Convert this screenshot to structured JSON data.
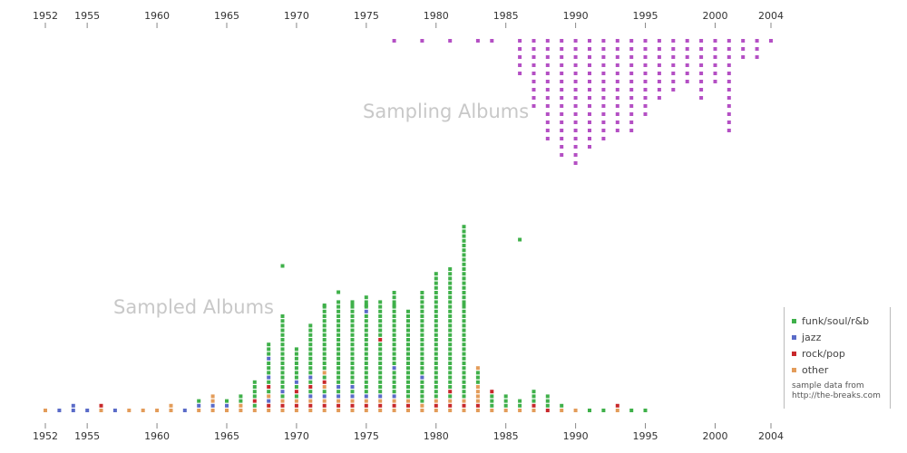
{
  "chart_data": {
    "type": "scatter",
    "x_ticks": [
      1952,
      1955,
      1960,
      1965,
      1970,
      1975,
      1980,
      1985,
      1990,
      1995,
      2000,
      2004
    ],
    "xlim": [
      1952,
      2004
    ],
    "sampling_label": "Sampling Albums",
    "sampled_label": "Sampled Albums",
    "colors": {
      "sampling": "#b44fc4",
      "funk/soul/r&b": "#3fb04a",
      "jazz": "#5a6bc8",
      "rock/pop": "#c8282b",
      "other": "#e39c5a"
    },
    "legend": {
      "items": [
        {
          "label": "funk/soul/r&b",
          "color": "#3fb04a"
        },
        {
          "label": "jazz",
          "color": "#5a6bc8"
        },
        {
          "label": "rock/pop",
          "color": "#c8282b"
        },
        {
          "label": "other",
          "color": "#e39c5a"
        }
      ],
      "note_line1": "sample data from",
      "note_line2": "http://the-breaks.com"
    },
    "sampling_counts": [
      [
        1977,
        1
      ],
      [
        1979,
        1
      ],
      [
        1981,
        1
      ],
      [
        1983,
        1
      ],
      [
        1984,
        1
      ],
      [
        1986,
        5
      ],
      [
        1987,
        9
      ],
      [
        1988,
        13
      ],
      [
        1989,
        15
      ],
      [
        1990,
        16
      ],
      [
        1991,
        14
      ],
      [
        1992,
        13
      ],
      [
        1993,
        12
      ],
      [
        1994,
        12
      ],
      [
        1995,
        10
      ],
      [
        1996,
        8
      ],
      [
        1997,
        7
      ],
      [
        1998,
        6
      ],
      [
        1999,
        8
      ],
      [
        2000,
        6
      ],
      [
        2001,
        12
      ],
      [
        2002,
        3
      ],
      [
        2003,
        3
      ],
      [
        2004,
        1
      ]
    ],
    "sampled_stacks": [
      [
        1952,
        [
          "other"
        ]
      ],
      [
        1953,
        [
          "jazz"
        ]
      ],
      [
        1954,
        [
          "jazz",
          "jazz"
        ]
      ],
      [
        1955,
        [
          "jazz"
        ]
      ],
      [
        1956,
        [
          "other",
          "rock/pop"
        ]
      ],
      [
        1957,
        [
          "jazz"
        ]
      ],
      [
        1958,
        [
          "other"
        ]
      ],
      [
        1959,
        [
          "other"
        ]
      ],
      [
        1960,
        [
          "other"
        ]
      ],
      [
        1961,
        [
          "other",
          "other"
        ]
      ],
      [
        1962,
        [
          "jazz"
        ]
      ],
      [
        1963,
        [
          "other",
          "jazz",
          "funk/soul/r&b"
        ]
      ],
      [
        1964,
        [
          "other",
          "jazz",
          "other",
          "other"
        ]
      ],
      [
        1965,
        [
          "other",
          "jazz",
          "funk/soul/r&b"
        ]
      ],
      [
        1966,
        [
          "other",
          "other",
          "funk/soul/r&b",
          "funk/soul/r&b"
        ]
      ],
      [
        1967,
        [
          "other",
          "funk/soul/r&b",
          "rock/pop",
          "funk/soul/r&b",
          "funk/soul/r&b",
          "funk/soul/r&b",
          "funk/soul/r&b"
        ]
      ],
      [
        1968,
        [
          "other",
          "rock/pop",
          "jazz",
          "other",
          "funk/soul/r&b",
          "rock/pop",
          "funk/soul/r&b",
          "jazz",
          "funk/soul/r&b",
          "funk/soul/r&b",
          "funk/soul/r&b",
          "jazz",
          "funk/soul/r&b",
          "funk/soul/r&b",
          "funk/soul/r&b"
        ]
      ],
      [
        1969,
        [
          "other",
          "rock/pop",
          "other",
          "funk/soul/r&b",
          "jazz",
          "funk/soul/r&b",
          "funk/soul/r&b",
          "funk/soul/r&b",
          "funk/soul/r&b",
          "funk/soul/r&b",
          "funk/soul/r&b",
          "funk/soul/r&b",
          "funk/soul/r&b",
          "funk/soul/r&b",
          "funk/soul/r&b",
          "funk/soul/r&b",
          "funk/soul/r&b",
          "funk/soul/r&b",
          "funk/soul/r&b",
          "funk/soul/r&b",
          "funk/soul/r&b"
        ]
      ],
      [
        1970,
        [
          "other",
          "rock/pop",
          "other",
          "funk/soul/r&b",
          "rock/pop",
          "funk/soul/r&b",
          "jazz",
          "funk/soul/r&b",
          "funk/soul/r&b",
          "funk/soul/r&b",
          "funk/soul/r&b",
          "funk/soul/r&b",
          "funk/soul/r&b",
          "funk/soul/r&b"
        ]
      ],
      [
        1971,
        [
          "other",
          "rock/pop",
          "other",
          "jazz",
          "funk/soul/r&b",
          "rock/pop",
          "funk/soul/r&b",
          "jazz",
          "funk/soul/r&b",
          "funk/soul/r&b",
          "funk/soul/r&b",
          "funk/soul/r&b",
          "funk/soul/r&b",
          "funk/soul/r&b",
          "funk/soul/r&b",
          "funk/soul/r&b",
          "funk/soul/r&b",
          "funk/soul/r&b",
          "funk/soul/r&b"
        ]
      ],
      [
        1972,
        [
          "other",
          "rock/pop",
          "other",
          "jazz",
          "funk/soul/r&b",
          "other",
          "rock/pop",
          "funk/soul/r&b",
          "other",
          "funk/soul/r&b",
          "funk/soul/r&b",
          "funk/soul/r&b",
          "funk/soul/r&b",
          "funk/soul/r&b",
          "funk/soul/r&b",
          "funk/soul/r&b",
          "funk/soul/r&b",
          "funk/soul/r&b",
          "funk/soul/r&b",
          "funk/soul/r&b",
          "funk/soul/r&b",
          "funk/soul/r&b",
          "funk/soul/r&b"
        ]
      ],
      [
        1973,
        [
          "other",
          "rock/pop",
          "other",
          "jazz",
          "funk/soul/r&b",
          "jazz",
          "funk/soul/r&b",
          "funk/soul/r&b",
          "funk/soul/r&b",
          "funk/soul/r&b",
          "funk/soul/r&b",
          "funk/soul/r&b",
          "funk/soul/r&b",
          "funk/soul/r&b",
          "funk/soul/r&b",
          "funk/soul/r&b",
          "funk/soul/r&b",
          "funk/soul/r&b",
          "funk/soul/r&b",
          "funk/soul/r&b",
          "funk/soul/r&b",
          "funk/soul/r&b",
          "funk/soul/r&b",
          "funk/soul/r&b"
        ]
      ],
      [
        1974,
        [
          "other",
          "rock/pop",
          "other",
          "jazz",
          "funk/soul/r&b",
          "jazz",
          "funk/soul/r&b",
          "funk/soul/r&b",
          "funk/soul/r&b",
          "funk/soul/r&b",
          "funk/soul/r&b",
          "funk/soul/r&b",
          "funk/soul/r&b",
          "funk/soul/r&b",
          "funk/soul/r&b",
          "funk/soul/r&b",
          "funk/soul/r&b",
          "funk/soul/r&b",
          "funk/soul/r&b",
          "funk/soul/r&b",
          "funk/soul/r&b",
          "funk/soul/r&b",
          "funk/soul/r&b",
          "funk/soul/r&b"
        ]
      ],
      [
        1975,
        [
          "other",
          "rock/pop",
          "other",
          "jazz",
          "funk/soul/r&b",
          "funk/soul/r&b",
          "funk/soul/r&b",
          "funk/soul/r&b",
          "funk/soul/r&b",
          "funk/soul/r&b",
          "funk/soul/r&b",
          "funk/soul/r&b",
          "funk/soul/r&b",
          "funk/soul/r&b",
          "funk/soul/r&b",
          "funk/soul/r&b",
          "funk/soul/r&b",
          "funk/soul/r&b",
          "funk/soul/r&b",
          "funk/soul/r&b",
          "funk/soul/r&b",
          "jazz",
          "funk/soul/r&b",
          "funk/soul/r&b",
          "funk/soul/r&b"
        ]
      ],
      [
        1976,
        [
          "other",
          "rock/pop",
          "other",
          "jazz",
          "funk/soul/r&b",
          "funk/soul/r&b",
          "funk/soul/r&b",
          "funk/soul/r&b",
          "funk/soul/r&b",
          "funk/soul/r&b",
          "funk/soul/r&b",
          "funk/soul/r&b",
          "funk/soul/r&b",
          "funk/soul/r&b",
          "funk/soul/r&b",
          "rock/pop",
          "funk/soul/r&b",
          "funk/soul/r&b",
          "funk/soul/r&b",
          "funk/soul/r&b",
          "funk/soul/r&b",
          "funk/soul/r&b",
          "funk/soul/r&b",
          "funk/soul/r&b"
        ]
      ],
      [
        1977,
        [
          "other",
          "rock/pop",
          "other",
          "jazz",
          "funk/soul/r&b",
          "funk/soul/r&b",
          "funk/soul/r&b",
          "funk/soul/r&b",
          "funk/soul/r&b",
          "jazz",
          "funk/soul/r&b",
          "funk/soul/r&b",
          "funk/soul/r&b",
          "funk/soul/r&b",
          "funk/soul/r&b",
          "funk/soul/r&b",
          "funk/soul/r&b",
          "funk/soul/r&b",
          "funk/soul/r&b",
          "funk/soul/r&b",
          "funk/soul/r&b",
          "funk/soul/r&b",
          "funk/soul/r&b",
          "funk/soul/r&b",
          "funk/soul/r&b",
          "funk/soul/r&b"
        ]
      ],
      [
        1978,
        [
          "other",
          "rock/pop",
          "other",
          "funk/soul/r&b",
          "funk/soul/r&b",
          "funk/soul/r&b",
          "funk/soul/r&b",
          "funk/soul/r&b",
          "funk/soul/r&b",
          "funk/soul/r&b",
          "funk/soul/r&b",
          "funk/soul/r&b",
          "funk/soul/r&b",
          "funk/soul/r&b",
          "funk/soul/r&b",
          "funk/soul/r&b",
          "funk/soul/r&b",
          "funk/soul/r&b",
          "funk/soul/r&b",
          "funk/soul/r&b",
          "funk/soul/r&b",
          "funk/soul/r&b"
        ]
      ],
      [
        1979,
        [
          "other",
          "other",
          "funk/soul/r&b",
          "funk/soul/r&b",
          "funk/soul/r&b",
          "funk/soul/r&b",
          "funk/soul/r&b",
          "jazz",
          "funk/soul/r&b",
          "funk/soul/r&b",
          "funk/soul/r&b",
          "funk/soul/r&b",
          "funk/soul/r&b",
          "funk/soul/r&b",
          "funk/soul/r&b",
          "funk/soul/r&b",
          "funk/soul/r&b",
          "funk/soul/r&b",
          "funk/soul/r&b",
          "funk/soul/r&b",
          "funk/soul/r&b",
          "funk/soul/r&b",
          "funk/soul/r&b",
          "funk/soul/r&b",
          "funk/soul/r&b",
          "funk/soul/r&b"
        ]
      ],
      [
        1980,
        [
          "other",
          "rock/pop",
          "other",
          "funk/soul/r&b",
          "funk/soul/r&b",
          "funk/soul/r&b",
          "funk/soul/r&b",
          "funk/soul/r&b",
          "funk/soul/r&b",
          "funk/soul/r&b",
          "funk/soul/r&b",
          "funk/soul/r&b",
          "funk/soul/r&b",
          "funk/soul/r&b",
          "funk/soul/r&b",
          "funk/soul/r&b",
          "funk/soul/r&b",
          "funk/soul/r&b",
          "funk/soul/r&b",
          "funk/soul/r&b",
          "funk/soul/r&b",
          "funk/soul/r&b",
          "funk/soul/r&b",
          "funk/soul/r&b",
          "funk/soul/r&b",
          "funk/soul/r&b",
          "funk/soul/r&b",
          "funk/soul/r&b",
          "funk/soul/r&b",
          "funk/soul/r&b"
        ]
      ],
      [
        1981,
        [
          "other",
          "rock/pop",
          "other",
          "funk/soul/r&b",
          "rock/pop",
          "funk/soul/r&b",
          "funk/soul/r&b",
          "funk/soul/r&b",
          "funk/soul/r&b",
          "funk/soul/r&b",
          "funk/soul/r&b",
          "funk/soul/r&b",
          "funk/soul/r&b",
          "funk/soul/r&b",
          "funk/soul/r&b",
          "funk/soul/r&b",
          "funk/soul/r&b",
          "funk/soul/r&b",
          "funk/soul/r&b",
          "funk/soul/r&b",
          "funk/soul/r&b",
          "funk/soul/r&b",
          "funk/soul/r&b",
          "funk/soul/r&b",
          "funk/soul/r&b",
          "funk/soul/r&b",
          "funk/soul/r&b",
          "funk/soul/r&b",
          "funk/soul/r&b",
          "funk/soul/r&b",
          "funk/soul/r&b"
        ]
      ],
      [
        1982,
        [
          "other",
          "rock/pop",
          "other",
          "funk/soul/r&b",
          "funk/soul/r&b",
          "funk/soul/r&b",
          "funk/soul/r&b",
          "funk/soul/r&b",
          "funk/soul/r&b",
          "funk/soul/r&b",
          "funk/soul/r&b",
          "funk/soul/r&b",
          "funk/soul/r&b",
          "funk/soul/r&b",
          "funk/soul/r&b",
          "funk/soul/r&b",
          "funk/soul/r&b",
          "funk/soul/r&b",
          "funk/soul/r&b",
          "funk/soul/r&b",
          "funk/soul/r&b",
          "funk/soul/r&b",
          "funk/soul/r&b",
          "funk/soul/r&b",
          "funk/soul/r&b",
          "funk/soul/r&b",
          "funk/soul/r&b",
          "funk/soul/r&b",
          "funk/soul/r&b",
          "funk/soul/r&b",
          "funk/soul/r&b",
          "funk/soul/r&b",
          "funk/soul/r&b",
          "funk/soul/r&b",
          "funk/soul/r&b",
          "funk/soul/r&b",
          "funk/soul/r&b",
          "funk/soul/r&b",
          "funk/soul/r&b",
          "funk/soul/r&b"
        ]
      ],
      [
        1983,
        [
          "other",
          "rock/pop",
          "other",
          "other",
          "other",
          "other",
          "funk/soul/r&b",
          "funk/soul/r&b",
          "funk/soul/r&b",
          "other"
        ]
      ],
      [
        1984,
        [
          "other",
          "funk/soul/r&b",
          "funk/soul/r&b",
          "funk/soul/r&b",
          "rock/pop"
        ]
      ],
      [
        1985,
        [
          "other",
          "funk/soul/r&b",
          "funk/soul/r&b",
          "funk/soul/r&b"
        ]
      ],
      [
        1986,
        [
          "other",
          "funk/soul/r&b",
          "funk/soul/r&b"
        ]
      ],
      [
        1987,
        [
          "other",
          "rock/pop",
          "funk/soul/r&b",
          "funk/soul/r&b",
          "funk/soul/r&b"
        ]
      ],
      [
        1988,
        [
          "rock/pop",
          "funk/soul/r&b",
          "funk/soul/r&b",
          "funk/soul/r&b"
        ]
      ],
      [
        1989,
        [
          "other",
          "funk/soul/r&b"
        ]
      ],
      [
        1990,
        [
          "other"
        ]
      ],
      [
        1991,
        [
          "funk/soul/r&b"
        ]
      ],
      [
        1992,
        [
          "funk/soul/r&b"
        ]
      ],
      [
        1993,
        [
          "other",
          "rock/pop"
        ]
      ],
      [
        1994,
        [
          "funk/soul/r&b"
        ]
      ],
      [
        1995,
        [
          "funk/soul/r&b"
        ]
      ]
    ],
    "sampled_outliers": [
      [
        1969,
        11,
        "funk/soul/r&b"
      ],
      [
        1986,
        13,
        "funk/soul/r&b"
      ],
      [
        1973,
        9,
        "funk/soul/r&b"
      ],
      [
        1972,
        8,
        "funk/soul/r&b"
      ],
      [
        1977,
        8,
        "funk/soul/r&b"
      ],
      [
        1975,
        8,
        "funk/soul/r&b"
      ],
      [
        1974,
        8,
        "funk/soul/r&b"
      ],
      [
        1982,
        8,
        "funk/soul/r&b"
      ]
    ]
  }
}
